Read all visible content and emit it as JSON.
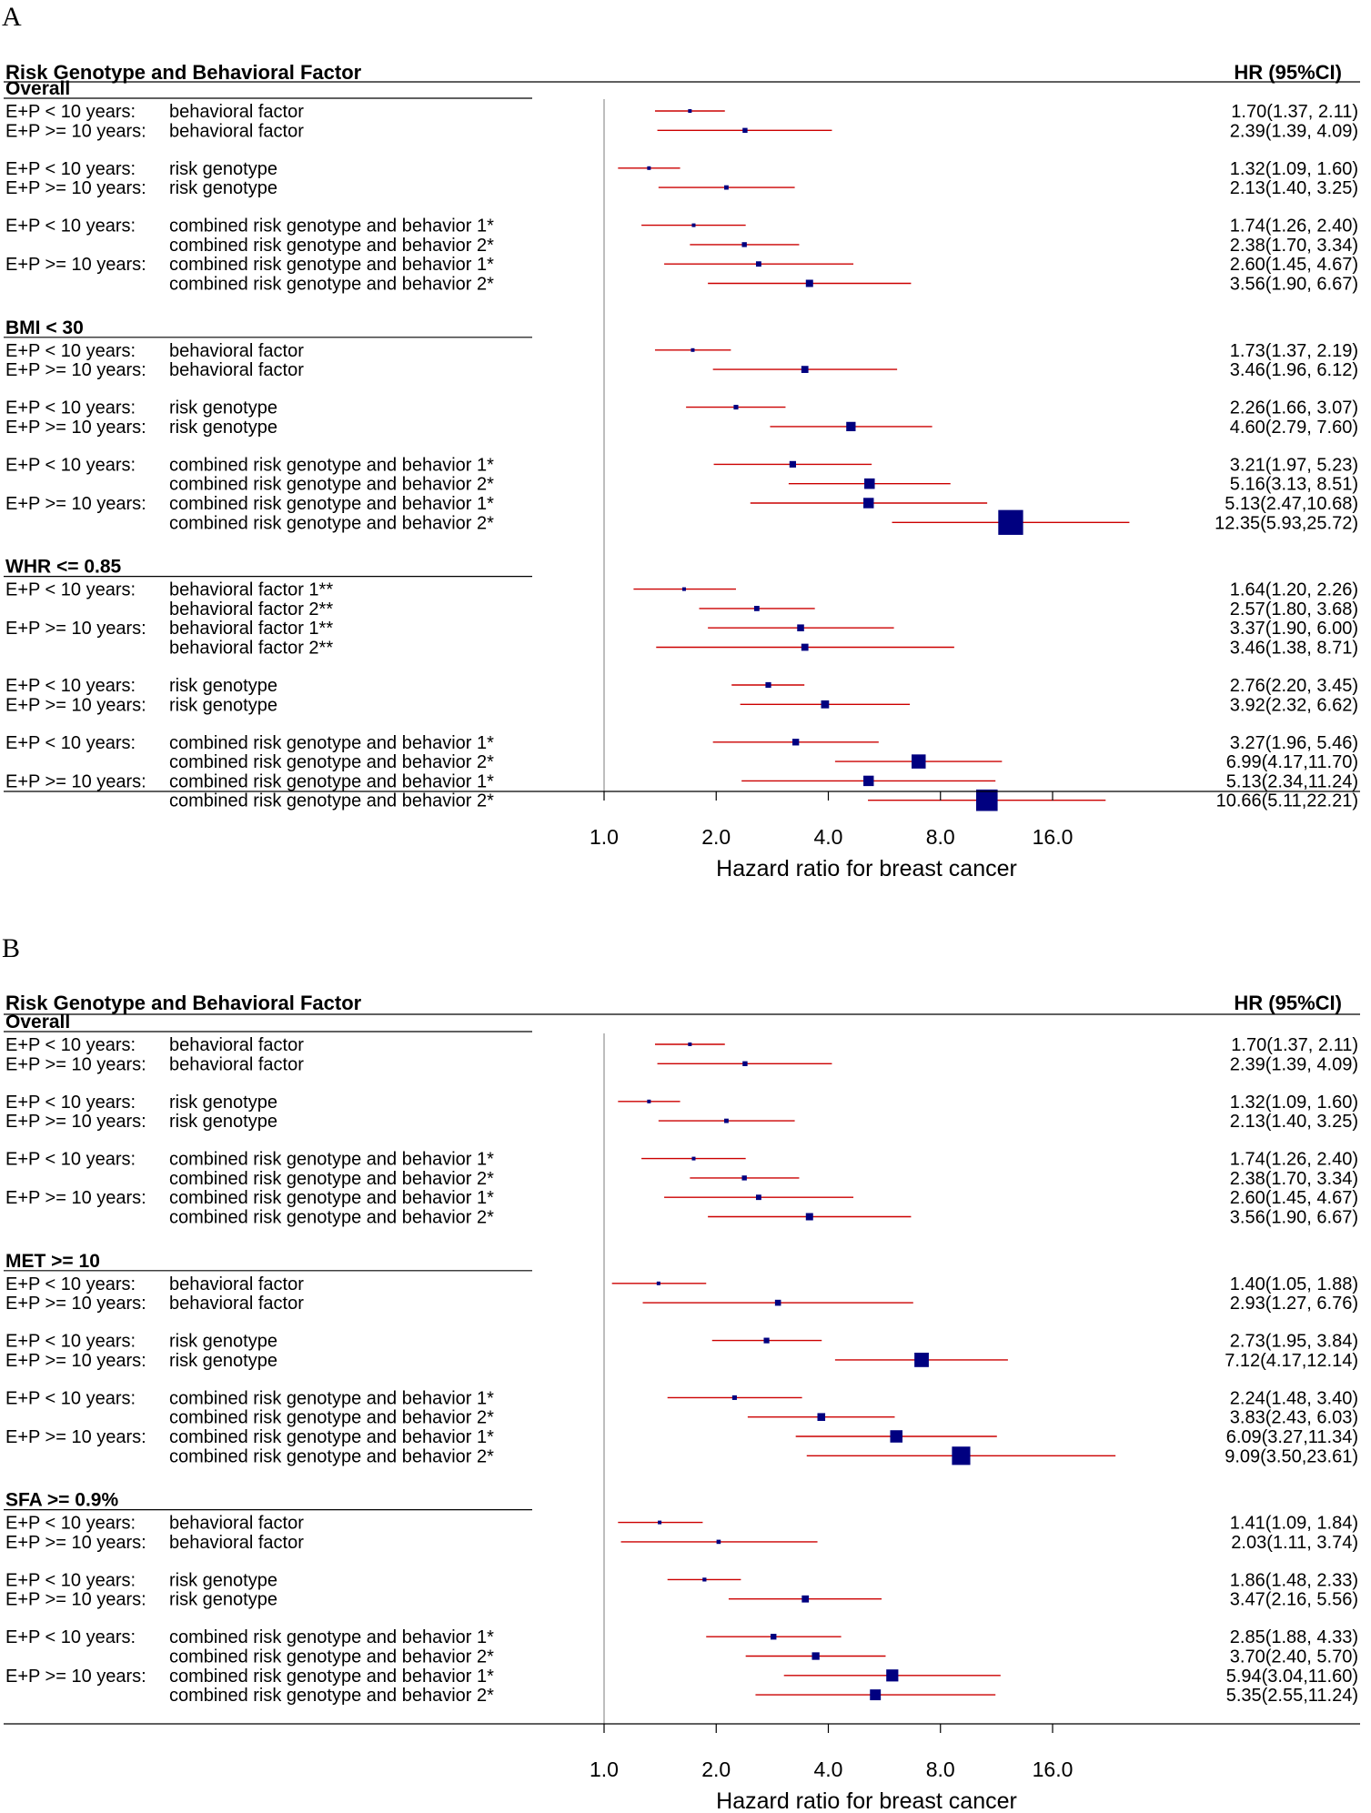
{
  "chart_data": [
    {
      "type": "forest",
      "panel_label": "A",
      "header_left": "Risk Genotype and Behavioral Factor",
      "header_right": "HR (95%CI)",
      "xlabel": "Hazard ratio for breast cancer",
      "x_scale": "log2",
      "x_ticks": [
        "1.0",
        "2.0",
        "4.0",
        "8.0",
        "16.0"
      ],
      "x_tick_values": [
        1,
        2,
        4,
        8,
        16
      ],
      "reference_line": 1,
      "color_ci": "#cc0000",
      "color_point": "#000080",
      "sections": [
        {
          "title": "Overall",
          "groups": [
            [
              {
                "prefix": "E+P < 10 years:",
                "label": "behavioral factor",
                "hr": 1.7,
                "lo": 1.37,
                "hi": 2.11,
                "text": "1.70(1.37, 2.11)"
              },
              {
                "prefix": "E+P >= 10 years:",
                "label": "behavioral factor",
                "hr": 2.39,
                "lo": 1.39,
                "hi": 4.09,
                "text": "2.39(1.39, 4.09)"
              }
            ],
            [
              {
                "prefix": "E+P < 10 years:",
                "label": "risk genotype",
                "hr": 1.32,
                "lo": 1.09,
                "hi": 1.6,
                "text": "1.32(1.09, 1.60)"
              },
              {
                "prefix": "E+P >= 10 years:",
                "label": "risk genotype",
                "hr": 2.13,
                "lo": 1.4,
                "hi": 3.25,
                "text": "2.13(1.40, 3.25)"
              }
            ],
            [
              {
                "prefix": "E+P < 10 years:",
                "label": "combined risk genotype and behavior 1*",
                "hr": 1.74,
                "lo": 1.26,
                "hi": 2.4,
                "text": "1.74(1.26, 2.40)"
              },
              {
                "prefix": "",
                "label": "combined risk genotype and behavior 2*",
                "hr": 2.38,
                "lo": 1.7,
                "hi": 3.34,
                "text": "2.38(1.70, 3.34)"
              },
              {
                "prefix": "E+P >= 10 years:",
                "label": "combined risk genotype and behavior 1*",
                "hr": 2.6,
                "lo": 1.45,
                "hi": 4.67,
                "text": "2.60(1.45, 4.67)"
              },
              {
                "prefix": "",
                "label": "combined risk genotype and behavior 2*",
                "hr": 3.56,
                "lo": 1.9,
                "hi": 6.67,
                "text": "3.56(1.90, 6.67)"
              }
            ]
          ]
        },
        {
          "title": "BMI < 30",
          "groups": [
            [
              {
                "prefix": "E+P < 10 years:",
                "label": "behavioral factor",
                "hr": 1.73,
                "lo": 1.37,
                "hi": 2.19,
                "text": "1.73(1.37, 2.19)"
              },
              {
                "prefix": "E+P >= 10 years:",
                "label": "behavioral factor",
                "hr": 3.46,
                "lo": 1.96,
                "hi": 6.12,
                "text": "3.46(1.96, 6.12)"
              }
            ],
            [
              {
                "prefix": "E+P < 10 years:",
                "label": "risk genotype",
                "hr": 2.26,
                "lo": 1.66,
                "hi": 3.07,
                "text": "2.26(1.66, 3.07)"
              },
              {
                "prefix": "E+P >= 10 years:",
                "label": "risk genotype",
                "hr": 4.6,
                "lo": 2.79,
                "hi": 7.6,
                "text": "4.60(2.79, 7.60)"
              }
            ],
            [
              {
                "prefix": "E+P < 10 years:",
                "label": "combined risk genotype and behavior 1*",
                "hr": 3.21,
                "lo": 1.97,
                "hi": 5.23,
                "text": "3.21(1.97, 5.23)"
              },
              {
                "prefix": "",
                "label": "combined risk genotype and behavior 2*",
                "hr": 5.16,
                "lo": 3.13,
                "hi": 8.51,
                "text": "5.16(3.13, 8.51)"
              },
              {
                "prefix": "E+P >= 10 years:",
                "label": "combined risk genotype and behavior 1*",
                "hr": 5.13,
                "lo": 2.47,
                "hi": 10.68,
                "text": "5.13(2.47,10.68)"
              },
              {
                "prefix": "",
                "label": "combined risk genotype and behavior 2*",
                "hr": 12.35,
                "lo": 5.93,
                "hi": 25.72,
                "text": "12.35(5.93,25.72)"
              }
            ]
          ]
        },
        {
          "title": "WHR <= 0.85",
          "groups": [
            [
              {
                "prefix": "E+P < 10 years:",
                "label": "behavioral factor 1**",
                "hr": 1.64,
                "lo": 1.2,
                "hi": 2.26,
                "text": "1.64(1.20, 2.26)"
              },
              {
                "prefix": "",
                "label": "behavioral factor 2**",
                "hr": 2.57,
                "lo": 1.8,
                "hi": 3.68,
                "text": "2.57(1.80, 3.68)"
              },
              {
                "prefix": "E+P >= 10 years:",
                "label": "behavioral factor 1**",
                "hr": 3.37,
                "lo": 1.9,
                "hi": 6.0,
                "text": "3.37(1.90, 6.00)"
              },
              {
                "prefix": "",
                "label": "behavioral factor 2**",
                "hr": 3.46,
                "lo": 1.38,
                "hi": 8.71,
                "text": "3.46(1.38, 8.71)"
              }
            ],
            [
              {
                "prefix": "E+P < 10 years:",
                "label": "risk genotype",
                "hr": 2.76,
                "lo": 2.2,
                "hi": 3.45,
                "text": "2.76(2.20, 3.45)"
              },
              {
                "prefix": "E+P >= 10 years:",
                "label": "risk genotype",
                "hr": 3.92,
                "lo": 2.32,
                "hi": 6.62,
                "text": "3.92(2.32, 6.62)"
              }
            ],
            [
              {
                "prefix": "E+P < 10 years:",
                "label": "combined risk genotype and behavior 1*",
                "hr": 3.27,
                "lo": 1.96,
                "hi": 5.46,
                "text": "3.27(1.96, 5.46)"
              },
              {
                "prefix": "",
                "label": "combined risk genotype and behavior 2*",
                "hr": 6.99,
                "lo": 4.17,
                "hi": 11.7,
                "text": "6.99(4.17,11.70)"
              },
              {
                "prefix": "E+P >= 10 years:",
                "label": "combined risk genotype and behavior 1*",
                "hr": 5.13,
                "lo": 2.34,
                "hi": 11.24,
                "text": "5.13(2.34,11.24)"
              },
              {
                "prefix": "",
                "label": "combined risk genotype and behavior 2*",
                "hr": 10.66,
                "lo": 5.11,
                "hi": 22.21,
                "text": "10.66(5.11,22.21)"
              }
            ]
          ]
        }
      ]
    },
    {
      "type": "forest",
      "panel_label": "B",
      "header_left": "Risk Genotype and Behavioral Factor",
      "header_right": "HR (95%CI)",
      "xlabel": "Hazard ratio for breast cancer",
      "x_scale": "log2",
      "x_ticks": [
        "1.0",
        "2.0",
        "4.0",
        "8.0",
        "16.0"
      ],
      "x_tick_values": [
        1,
        2,
        4,
        8,
        16
      ],
      "reference_line": 1,
      "color_ci": "#cc0000",
      "color_point": "#000080",
      "sections": [
        {
          "title": "Overall",
          "groups": [
            [
              {
                "prefix": "E+P < 10 years:",
                "label": "behavioral factor",
                "hr": 1.7,
                "lo": 1.37,
                "hi": 2.11,
                "text": "1.70(1.37, 2.11)"
              },
              {
                "prefix": "E+P >= 10 years:",
                "label": "behavioral factor",
                "hr": 2.39,
                "lo": 1.39,
                "hi": 4.09,
                "text": "2.39(1.39, 4.09)"
              }
            ],
            [
              {
                "prefix": "E+P < 10 years:",
                "label": "risk genotype",
                "hr": 1.32,
                "lo": 1.09,
                "hi": 1.6,
                "text": "1.32(1.09, 1.60)"
              },
              {
                "prefix": "E+P >= 10 years:",
                "label": "risk genotype",
                "hr": 2.13,
                "lo": 1.4,
                "hi": 3.25,
                "text": "2.13(1.40, 3.25)"
              }
            ],
            [
              {
                "prefix": "E+P < 10 years:",
                "label": "combined risk genotype and behavior 1*",
                "hr": 1.74,
                "lo": 1.26,
                "hi": 2.4,
                "text": "1.74(1.26, 2.40)"
              },
              {
                "prefix": "",
                "label": "combined risk genotype and behavior 2*",
                "hr": 2.38,
                "lo": 1.7,
                "hi": 3.34,
                "text": "2.38(1.70, 3.34)"
              },
              {
                "prefix": "E+P >= 10 years:",
                "label": "combined risk genotype and behavior 1*",
                "hr": 2.6,
                "lo": 1.45,
                "hi": 4.67,
                "text": "2.60(1.45, 4.67)"
              },
              {
                "prefix": "",
                "label": "combined risk genotype and behavior 2*",
                "hr": 3.56,
                "lo": 1.9,
                "hi": 6.67,
                "text": "3.56(1.90, 6.67)"
              }
            ]
          ]
        },
        {
          "title": "MET >= 10",
          "groups": [
            [
              {
                "prefix": "E+P < 10 years:",
                "label": "behavioral factor",
                "hr": 1.4,
                "lo": 1.05,
                "hi": 1.88,
                "text": "1.40(1.05, 1.88)"
              },
              {
                "prefix": "E+P >= 10 years:",
                "label": "behavioral factor",
                "hr": 2.93,
                "lo": 1.27,
                "hi": 6.76,
                "text": "2.93(1.27, 6.76)"
              }
            ],
            [
              {
                "prefix": "E+P < 10 years:",
                "label": "risk genotype",
                "hr": 2.73,
                "lo": 1.95,
                "hi": 3.84,
                "text": "2.73(1.95, 3.84)"
              },
              {
                "prefix": "E+P >= 10 years:",
                "label": "risk genotype",
                "hr": 7.12,
                "lo": 4.17,
                "hi": 12.14,
                "text": "7.12(4.17,12.14)"
              }
            ],
            [
              {
                "prefix": "E+P < 10 years:",
                "label": "combined risk genotype and behavior 1*",
                "hr": 2.24,
                "lo": 1.48,
                "hi": 3.4,
                "text": "2.24(1.48, 3.40)"
              },
              {
                "prefix": "",
                "label": "combined risk genotype and behavior 2*",
                "hr": 3.83,
                "lo": 2.43,
                "hi": 6.03,
                "text": "3.83(2.43, 6.03)"
              },
              {
                "prefix": "E+P >= 10 years:",
                "label": "combined risk genotype and behavior 1*",
                "hr": 6.09,
                "lo": 3.27,
                "hi": 11.34,
                "text": "6.09(3.27,11.34)"
              },
              {
                "prefix": "",
                "label": "combined risk genotype and behavior 2*",
                "hr": 9.09,
                "lo": 3.5,
                "hi": 23.61,
                "text": "9.09(3.50,23.61)"
              }
            ]
          ]
        },
        {
          "title": "SFA >= 0.9%",
          "groups": [
            [
              {
                "prefix": "E+P < 10 years:",
                "label": "behavioral factor",
                "hr": 1.41,
                "lo": 1.09,
                "hi": 1.84,
                "text": "1.41(1.09, 1.84)"
              },
              {
                "prefix": "E+P >= 10 years:",
                "label": "behavioral factor",
                "hr": 2.03,
                "lo": 1.11,
                "hi": 3.74,
                "text": "2.03(1.11, 3.74)"
              }
            ],
            [
              {
                "prefix": "E+P < 10 years:",
                "label": "risk genotype",
                "hr": 1.86,
                "lo": 1.48,
                "hi": 2.33,
                "text": "1.86(1.48, 2.33)"
              },
              {
                "prefix": "E+P >= 10 years:",
                "label": "risk genotype",
                "hr": 3.47,
                "lo": 2.16,
                "hi": 5.56,
                "text": "3.47(2.16, 5.56)"
              }
            ],
            [
              {
                "prefix": "E+P < 10 years:",
                "label": "combined risk genotype and behavior 1*",
                "hr": 2.85,
                "lo": 1.88,
                "hi": 4.33,
                "text": "2.85(1.88, 4.33)"
              },
              {
                "prefix": "",
                "label": "combined risk genotype and behavior 2*",
                "hr": 3.7,
                "lo": 2.4,
                "hi": 5.7,
                "text": "3.70(2.40, 5.70)"
              },
              {
                "prefix": "E+P >= 10 years:",
                "label": "combined risk genotype and behavior 1*",
                "hr": 5.94,
                "lo": 3.04,
                "hi": 11.6,
                "text": "5.94(3.04,11.60)"
              },
              {
                "prefix": "",
                "label": "combined risk genotype and behavior 2*",
                "hr": 5.35,
                "lo": 2.55,
                "hi": 11.24,
                "text": "5.35(2.55,11.24)"
              }
            ]
          ]
        }
      ]
    }
  ]
}
